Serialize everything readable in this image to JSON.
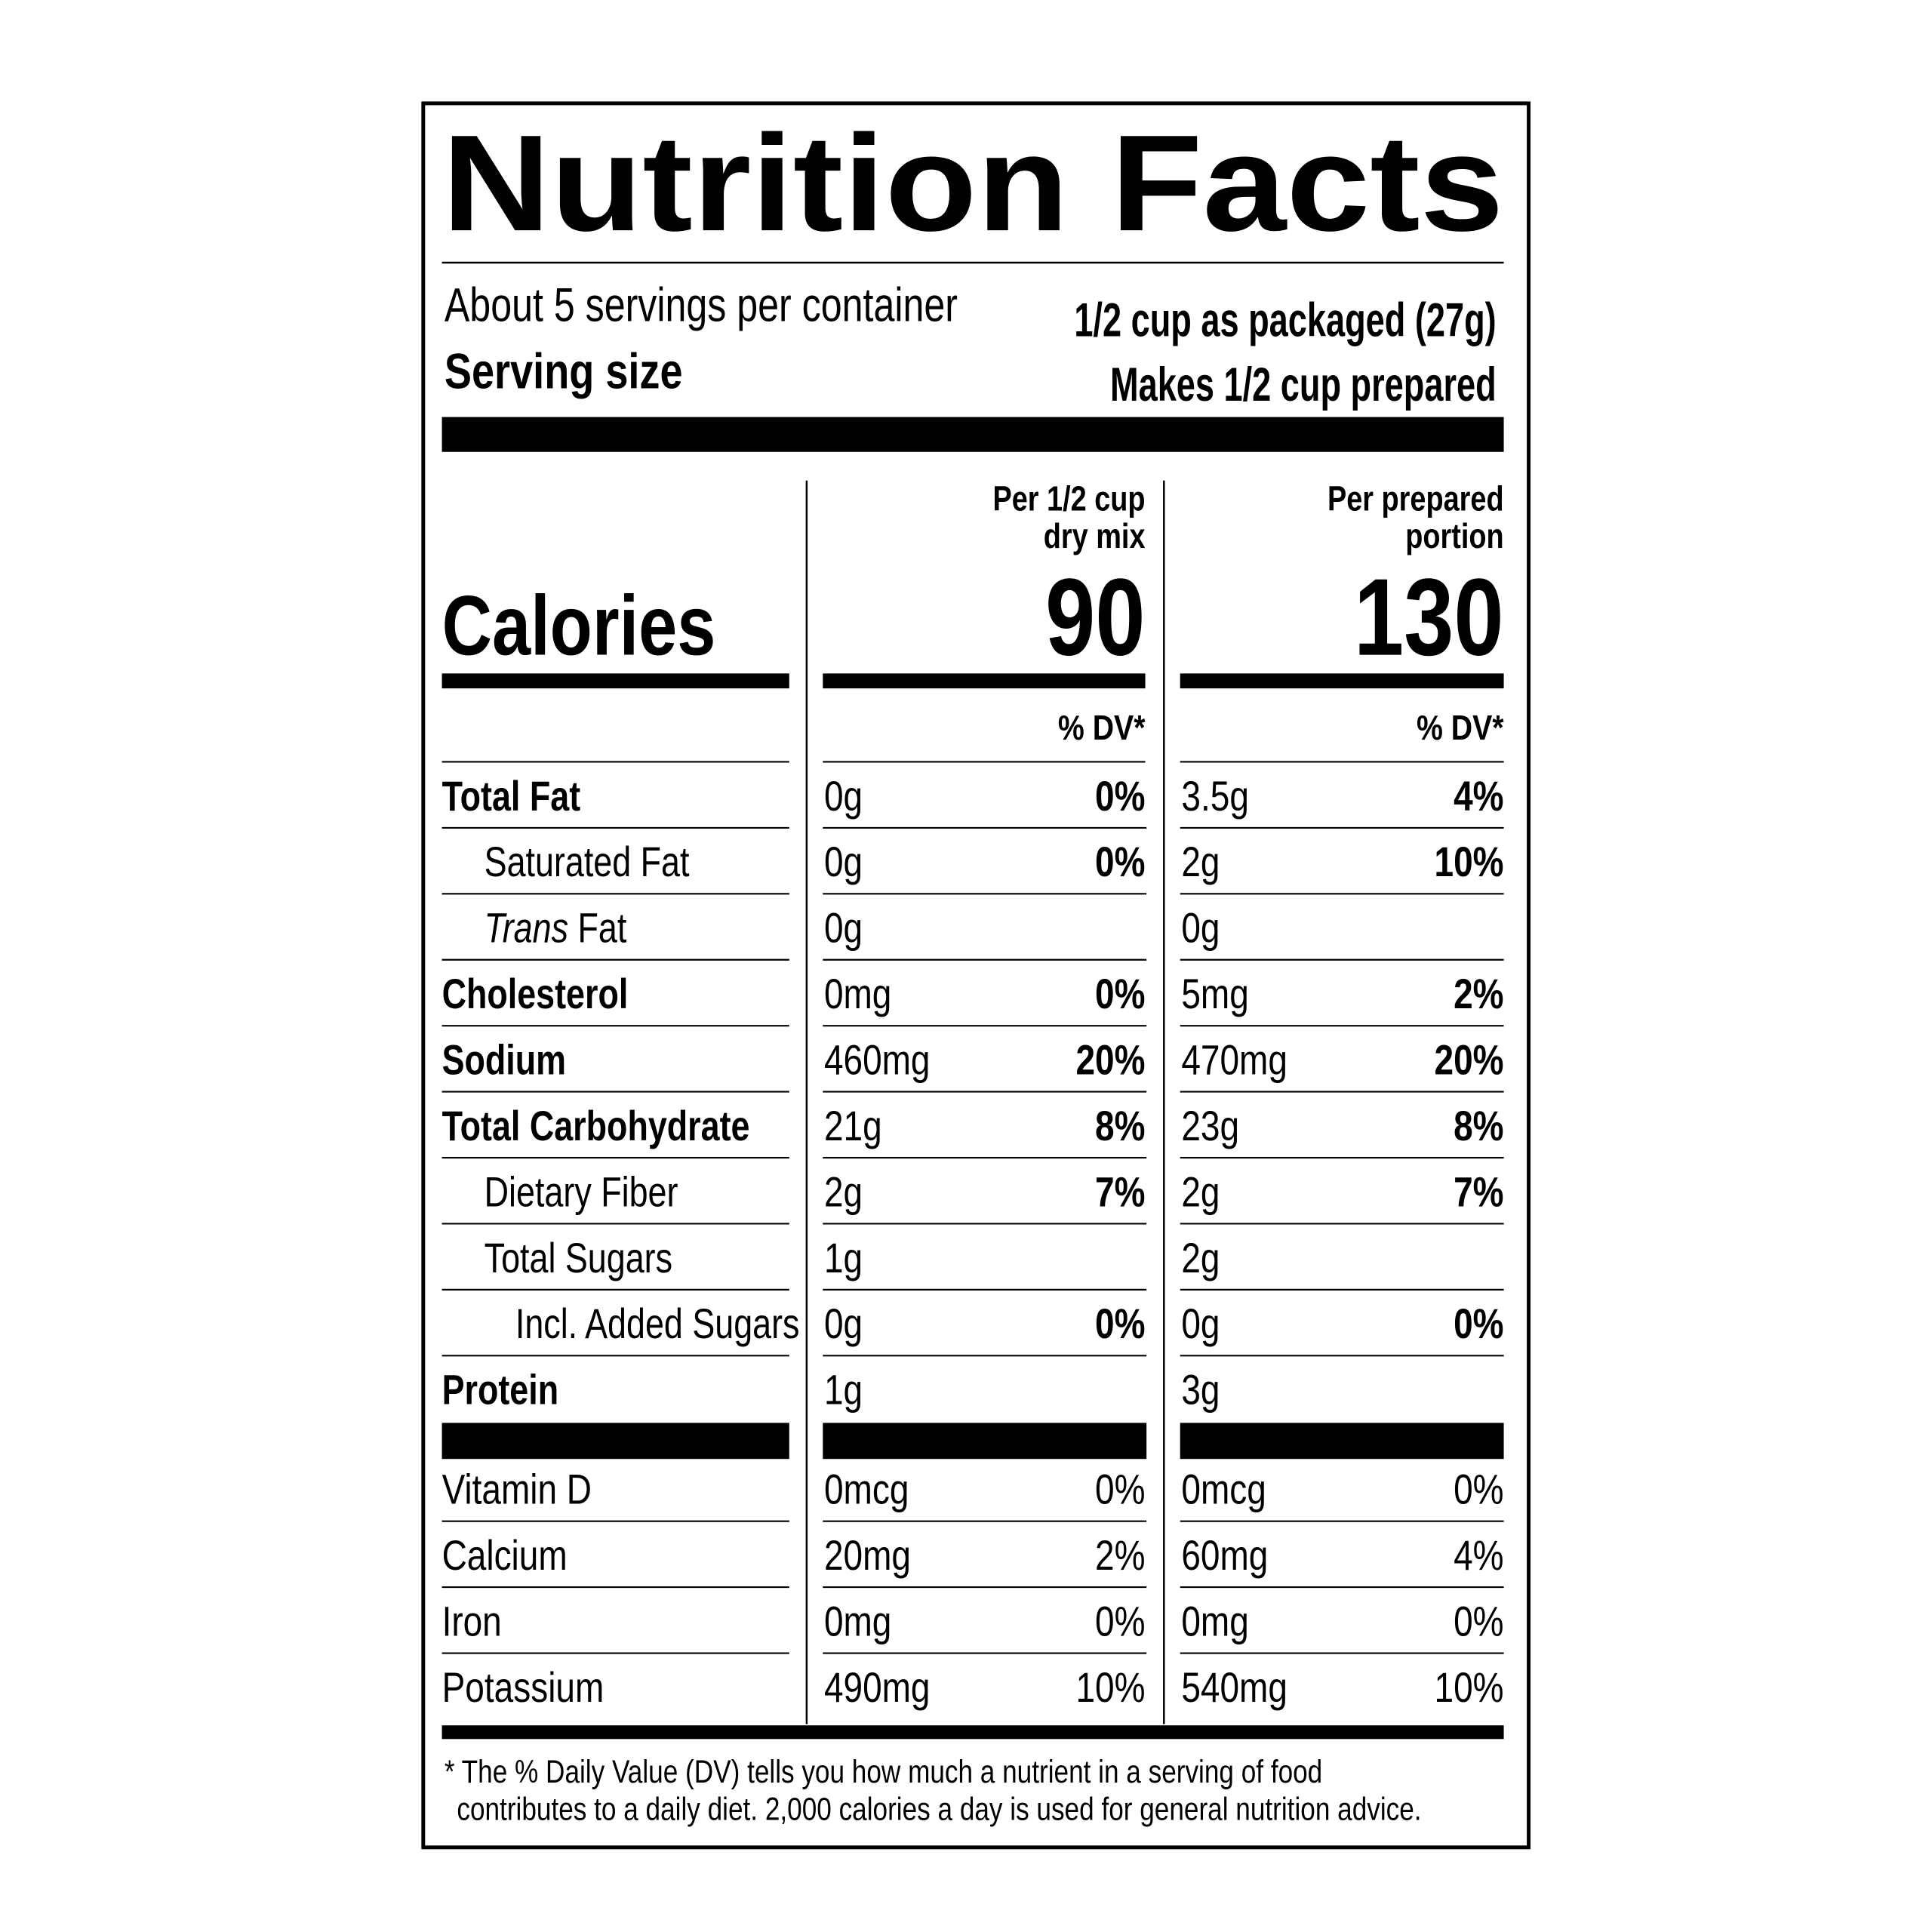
{
  "header": {
    "title": "Nutrition Facts",
    "servings_per_container": "About 5 servings per container",
    "serving_size_label": "Serving size",
    "serving_size_packaged": "1/2 cup as packaged (27g)",
    "serving_size_prepared": "Makes 1/2 cup prepared"
  },
  "calories_label": "Calories",
  "dv_heading": "% DV*",
  "columns": [
    {
      "heading": [
        "Per 1/2 cup",
        "dry mix"
      ],
      "calories": 90
    },
    {
      "heading": [
        "Per prepared",
        "portion"
      ],
      "calories": 130
    }
  ],
  "nutrients": [
    {
      "name": "Total Fat",
      "level": 0,
      "bold": true,
      "values": [
        {
          "amount": "0g",
          "dv": "0%"
        },
        {
          "amount": "3.5g",
          "dv": "4%"
        }
      ]
    },
    {
      "name": "Saturated Fat",
      "level": 1,
      "bold": false,
      "values": [
        {
          "amount": "0g",
          "dv": "0%"
        },
        {
          "amount": "2g",
          "dv": "10%"
        }
      ]
    },
    {
      "name_italic": "Trans",
      "name": "Fat",
      "level": 1,
      "bold": false,
      "values": [
        {
          "amount": "0g"
        },
        {
          "amount": "0g"
        }
      ]
    },
    {
      "name": "Cholesterol",
      "level": 0,
      "bold": true,
      "values": [
        {
          "amount": "0mg",
          "dv": "0%"
        },
        {
          "amount": "5mg",
          "dv": "2%"
        }
      ]
    },
    {
      "name": "Sodium",
      "level": 0,
      "bold": true,
      "values": [
        {
          "amount": "460mg",
          "dv": "20%"
        },
        {
          "amount": "470mg",
          "dv": "20%"
        }
      ]
    },
    {
      "name": "Total Carbohydrate",
      "level": 0,
      "bold": true,
      "values": [
        {
          "amount": "21g",
          "dv": "8%"
        },
        {
          "amount": "23g",
          "dv": "8%"
        }
      ]
    },
    {
      "name": "Dietary Fiber",
      "level": 1,
      "bold": false,
      "values": [
        {
          "amount": "2g",
          "dv": "7%"
        },
        {
          "amount": "2g",
          "dv": "7%"
        }
      ]
    },
    {
      "name": "Total Sugars",
      "level": 1,
      "bold": false,
      "values": [
        {
          "amount": "1g"
        },
        {
          "amount": "2g"
        }
      ]
    },
    {
      "name": "Incl. Added Sugars",
      "level": 2,
      "bold": false,
      "values": [
        {
          "amount": "0g",
          "dv": "0%"
        },
        {
          "amount": "0g",
          "dv": "0%"
        }
      ]
    },
    {
      "name": "Protein",
      "level": 0,
      "bold": true,
      "values": [
        {
          "amount": "1g"
        },
        {
          "amount": "3g"
        }
      ]
    }
  ],
  "vitamins": [
    {
      "name": "Vitamin D",
      "values": [
        {
          "amount": "0mcg",
          "dv": "0%"
        },
        {
          "amount": "0mcg",
          "dv": "0%"
        }
      ]
    },
    {
      "name": "Calcium",
      "values": [
        {
          "amount": "20mg",
          "dv": "2%"
        },
        {
          "amount": "60mg",
          "dv": "4%"
        }
      ]
    },
    {
      "name": "Iron",
      "values": [
        {
          "amount": "0mg",
          "dv": "0%"
        },
        {
          "amount": "0mg",
          "dv": "0%"
        }
      ]
    },
    {
      "name": "Potassium",
      "values": [
        {
          "amount": "490mg",
          "dv": "10%"
        },
        {
          "amount": "540mg",
          "dv": "10%"
        }
      ]
    }
  ],
  "footnote": [
    "* The % Daily Value (DV) tells you how much a nutrient in a serving of food",
    "contributes to a daily diet. 2,000 calories a day is used for general nutrition advice."
  ]
}
